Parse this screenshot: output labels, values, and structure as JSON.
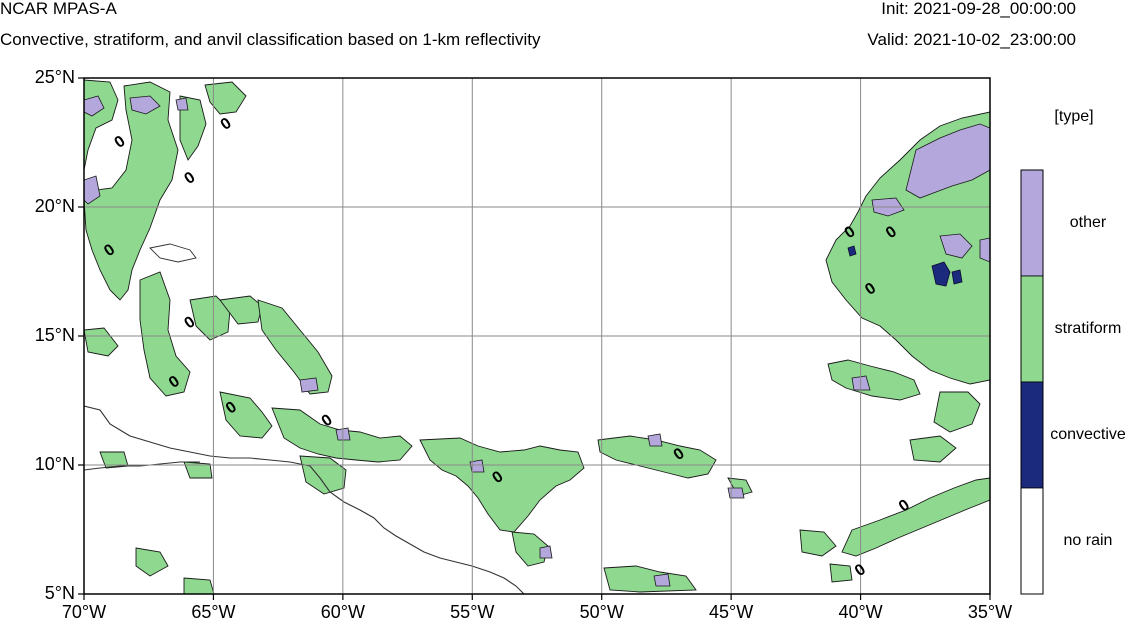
{
  "header": {
    "title": "NCAR MPAS-A",
    "subtitle": "Convective, stratiform, and anvil classification based on 1-km reflectivity",
    "init": "Init: 2021-09-28_00:00:00",
    "valid": "Valid: 2021-10-02_23:00:00"
  },
  "map": {
    "lon_range": [
      -70,
      -35
    ],
    "lat_range": [
      5,
      25
    ],
    "grid": true,
    "lon_ticks": [
      {
        "value": -70,
        "label": "70°W"
      },
      {
        "value": -65,
        "label": "65°W"
      },
      {
        "value": -60,
        "label": "60°W"
      },
      {
        "value": -55,
        "label": "55°W"
      },
      {
        "value": -50,
        "label": "50°W"
      },
      {
        "value": -45,
        "label": "45°W"
      },
      {
        "value": -40,
        "label": "40°W"
      },
      {
        "value": -35,
        "label": "35°W"
      }
    ],
    "lat_ticks": [
      {
        "value": 25,
        "label": "25°N"
      },
      {
        "value": 20,
        "label": "20°N"
      },
      {
        "value": 15,
        "label": "15°N"
      },
      {
        "value": 10,
        "label": "10°N"
      },
      {
        "value": 5,
        "label": "5°N"
      }
    ],
    "contour_labels": [
      {
        "lon": -68.6,
        "lat": 22.5,
        "text": "0"
      },
      {
        "lon": -64.5,
        "lat": 23.2,
        "text": "0"
      },
      {
        "lon": -65.9,
        "lat": 21.1,
        "text": "0"
      },
      {
        "lon": -69.0,
        "lat": 18.3,
        "text": "0"
      },
      {
        "lon": -65.9,
        "lat": 15.5,
        "text": "0"
      },
      {
        "lon": -66.5,
        "lat": 13.2,
        "text": "0"
      },
      {
        "lon": -64.3,
        "lat": 12.2,
        "text": "0"
      },
      {
        "lon": -60.6,
        "lat": 11.7,
        "text": "0"
      },
      {
        "lon": -54.0,
        "lat": 9.5,
        "text": "0"
      },
      {
        "lon": -47.0,
        "lat": 10.4,
        "text": "0"
      },
      {
        "lon": -40.4,
        "lat": 19.0,
        "text": "0"
      },
      {
        "lon": -38.8,
        "lat": 19.0,
        "text": "0"
      },
      {
        "lon": -39.6,
        "lat": 16.8,
        "text": "0"
      },
      {
        "lon": -38.3,
        "lat": 8.4,
        "text": "0"
      },
      {
        "lon": -40.0,
        "lat": 5.9,
        "text": "0"
      }
    ]
  },
  "legend": {
    "title": "[type]",
    "items": [
      {
        "label": "other",
        "color": "#b4a7dc"
      },
      {
        "label": "stratiform",
        "color": "#8ed88f"
      },
      {
        "label": "convective",
        "color": "#1b2a7d"
      },
      {
        "label": "no rain",
        "color": "#ffffff"
      }
    ]
  },
  "colors": {
    "other": "#b4a7dc",
    "stratiform": "#8ed88f",
    "convective": "#1b2a7d",
    "coast": "#333333",
    "grid": "#8a8a8a"
  }
}
